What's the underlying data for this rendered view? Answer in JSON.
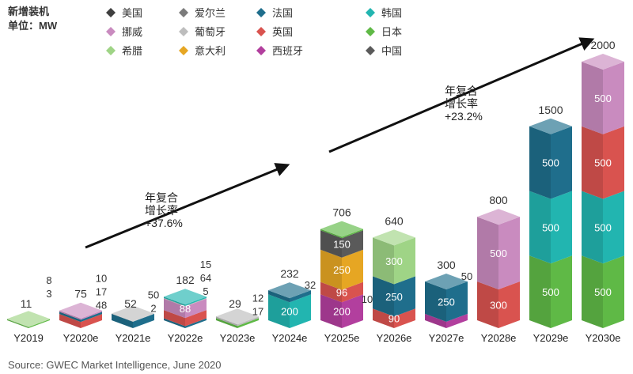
{
  "chart_data": {
    "type": "bar",
    "subtype": "stacked-3d-column",
    "title": "新增装机",
    "unit_label": "单位：MW",
    "categories": [
      "Y2019",
      "Y2020e",
      "Y2021e",
      "Y2022e",
      "Y2023e",
      "Y2024e",
      "Y2025e",
      "Y2026e",
      "Y2027e",
      "Y2028e",
      "Y2029e",
      "Y2030e"
    ],
    "totals": [
      11,
      75,
      52,
      182,
      29,
      232,
      706,
      640,
      300,
      800,
      1500,
      2000
    ],
    "legend": [
      {
        "name": "美国",
        "color": "#3f3f3f"
      },
      {
        "name": "爱尔兰",
        "color": "#7b7b7b"
      },
      {
        "name": "法国",
        "color": "#1f6e8c"
      },
      {
        "name": "韩国",
        "color": "#22b5b0"
      },
      {
        "name": "挪威",
        "color": "#c98bbf"
      },
      {
        "name": "葡萄牙",
        "color": "#bdbdbd"
      },
      {
        "name": "英国",
        "color": "#d9534f"
      },
      {
        "name": "日本",
        "color": "#5fb946"
      },
      {
        "name": "希腊",
        "color": "#9fd486"
      },
      {
        "name": "意大利",
        "color": "#e6a623"
      },
      {
        "name": "西班牙",
        "color": "#b23f9e"
      },
      {
        "name": "中国",
        "color": "#5a5a5a"
      }
    ],
    "stacks": [
      [
        {
          "country": "日本",
          "value": 8
        },
        {
          "country": "希腊",
          "value": 3
        }
      ],
      [
        {
          "country": "英国",
          "value": 48
        },
        {
          "country": "法国",
          "value": 17
        },
        {
          "country": "挪威",
          "value": 10
        }
      ],
      [
        {
          "country": "法国",
          "value": 50
        },
        {
          "country": "葡萄牙",
          "value": 2
        }
      ],
      [
        {
          "country": "法国",
          "value": 15
        },
        {
          "country": "英国",
          "value": 64
        },
        {
          "country": "挪威",
          "value": 88
        },
        {
          "country": "葡萄牙",
          "value": 5
        },
        {
          "country": "韩国",
          "value": 10
        }
      ],
      [
        {
          "country": "日本",
          "value": 17
        },
        {
          "country": "葡萄牙",
          "value": 12
        }
      ],
      [
        {
          "country": "韩国",
          "value": 200
        },
        {
          "country": "法国",
          "value": 32
        }
      ],
      [
        {
          "country": "西班牙",
          "value": 200
        },
        {
          "country": "英国",
          "value": 96
        },
        {
          "country": "意大利",
          "value": 250
        },
        {
          "country": "中国",
          "value": 150
        },
        {
          "country": "日本",
          "value": 10
        }
      ],
      [
        {
          "country": "英国",
          "value": 90
        },
        {
          "country": "法国",
          "value": 250
        },
        {
          "country": "希腊",
          "value": 300
        }
      ],
      [
        {
          "country": "西班牙",
          "value": 50
        },
        {
          "country": "法国",
          "value": 250
        }
      ],
      [
        {
          "country": "英国",
          "value": 300
        },
        {
          "country": "挪威",
          "value": 500
        }
      ],
      [
        {
          "country": "日本",
          "value": 500
        },
        {
          "country": "韩国",
          "value": 500
        },
        {
          "country": "法国",
          "value": 500
        }
      ],
      [
        {
          "country": "日本",
          "value": 500
        },
        {
          "country": "韩国",
          "value": 500
        },
        {
          "country": "英国",
          "value": 500
        },
        {
          "country": "挪威",
          "value": 500
        }
      ]
    ],
    "inner_labels": [
      {
        "cat": 7,
        "seg": 0,
        "text": "90"
      },
      {
        "cat": 6,
        "seg": 0,
        "text": "200"
      },
      {
        "cat": 6,
        "seg": 1,
        "text": "96"
      },
      {
        "cat": 6,
        "seg": 2,
        "text": "250"
      },
      {
        "cat": 6,
        "seg": 3,
        "text": "150"
      },
      {
        "cat": 5,
        "seg": 0,
        "text": "200"
      },
      {
        "cat": 3,
        "seg": 2,
        "text": "88"
      },
      {
        "cat": 7,
        "seg": 1,
        "text": "250"
      },
      {
        "cat": 7,
        "seg": 2,
        "text": "300"
      },
      {
        "cat": 8,
        "seg": 1,
        "text": "250"
      },
      {
        "cat": 9,
        "seg": 0,
        "text": "300"
      },
      {
        "cat": 9,
        "seg": 1,
        "text": "500"
      },
      {
        "cat": 10,
        "seg": 0,
        "text": "500"
      },
      {
        "cat": 10,
        "seg": 1,
        "text": "500"
      },
      {
        "cat": 10,
        "seg": 2,
        "text": "500"
      },
      {
        "cat": 11,
        "seg": 0,
        "text": "500"
      },
      {
        "cat": 11,
        "seg": 1,
        "text": "500"
      },
      {
        "cat": 11,
        "seg": 2,
        "text": "500"
      },
      {
        "cat": 11,
        "seg": 3,
        "text": "500"
      }
    ],
    "side_labels": [
      {
        "cat": 0,
        "lines": [
          "8",
          "3"
        ]
      },
      {
        "cat": 1,
        "lines": [
          "10",
          "17",
          "48"
        ]
      },
      {
        "cat": 2,
        "lines": [
          "50",
          "2"
        ]
      },
      {
        "cat": 3,
        "lines": [
          "15",
          "64",
          "5"
        ]
      },
      {
        "cat": 4,
        "lines": [
          "12",
          "17"
        ]
      },
      {
        "cat": 5,
        "lines": [
          "32"
        ]
      },
      {
        "cat": 6,
        "lines": [
          "10"
        ]
      },
      {
        "cat": 8,
        "lines": [
          "50"
        ]
      }
    ],
    "annotations": [
      {
        "lines": [
          "年复合",
          "增长率",
          "+37.6%"
        ]
      },
      {
        "lines": [
          "年复合",
          "增长率",
          "+23.2%"
        ]
      }
    ],
    "source": "Source: GWEC Market Intelligence, June 2020"
  }
}
